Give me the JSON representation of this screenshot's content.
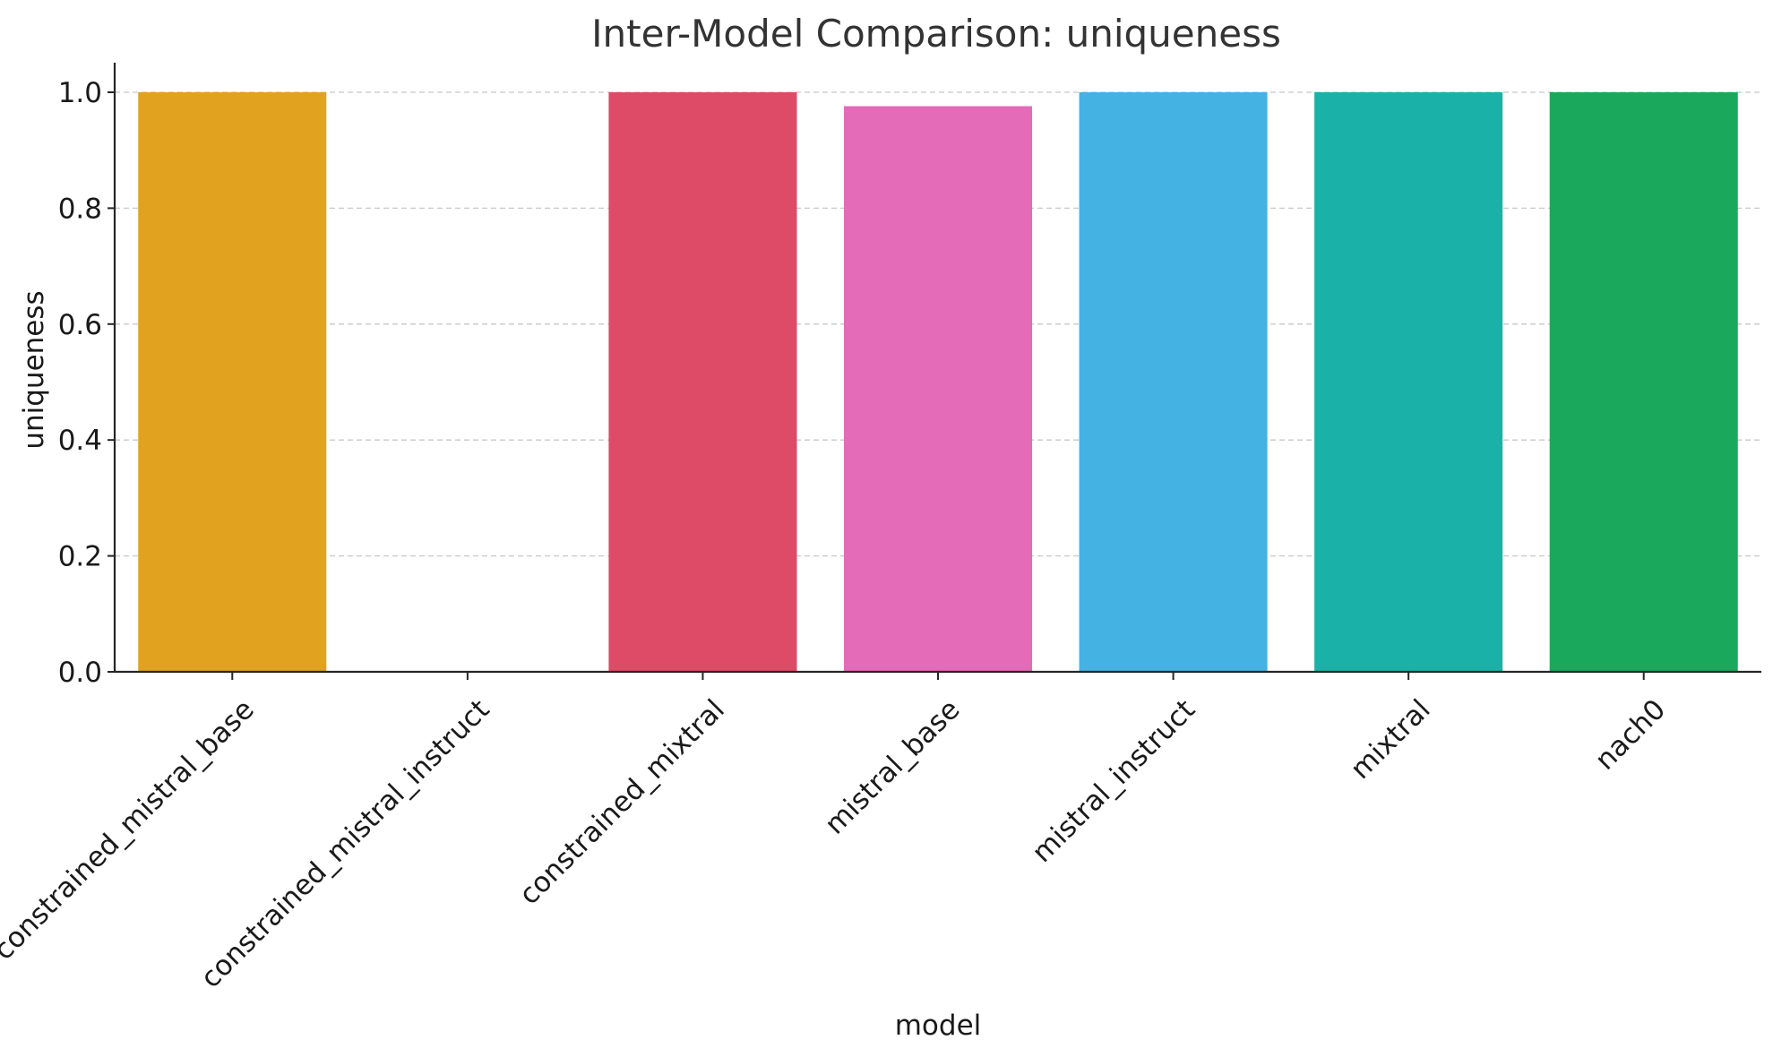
{
  "chart_data": {
    "type": "bar",
    "title": "Inter-Model Comparison: uniqueness",
    "xlabel": "model",
    "ylabel": "uniqueness",
    "ylim": [
      0,
      1.05
    ],
    "yticks": [
      0.0,
      0.2,
      0.4,
      0.6,
      0.8,
      1.0
    ],
    "ytick_labels": [
      "0.0",
      "0.2",
      "0.4",
      "0.6",
      "0.8",
      "1.0"
    ],
    "grid": "y-dashed",
    "categories": [
      "constrained_mistral_base",
      "constrained_mistral_instruct",
      "constrained_mixtral",
      "mistral_base",
      "mistral_instruct",
      "mixtral",
      "nach0"
    ],
    "values": [
      1.0,
      0.0,
      1.0,
      0.976,
      1.0,
      1.0,
      1.0
    ],
    "colors": [
      "#e0a21f",
      "#cccccc",
      "#dd4b67",
      "#e46bb8",
      "#44b2e3",
      "#1ab2a8",
      "#1aa95c"
    ]
  }
}
